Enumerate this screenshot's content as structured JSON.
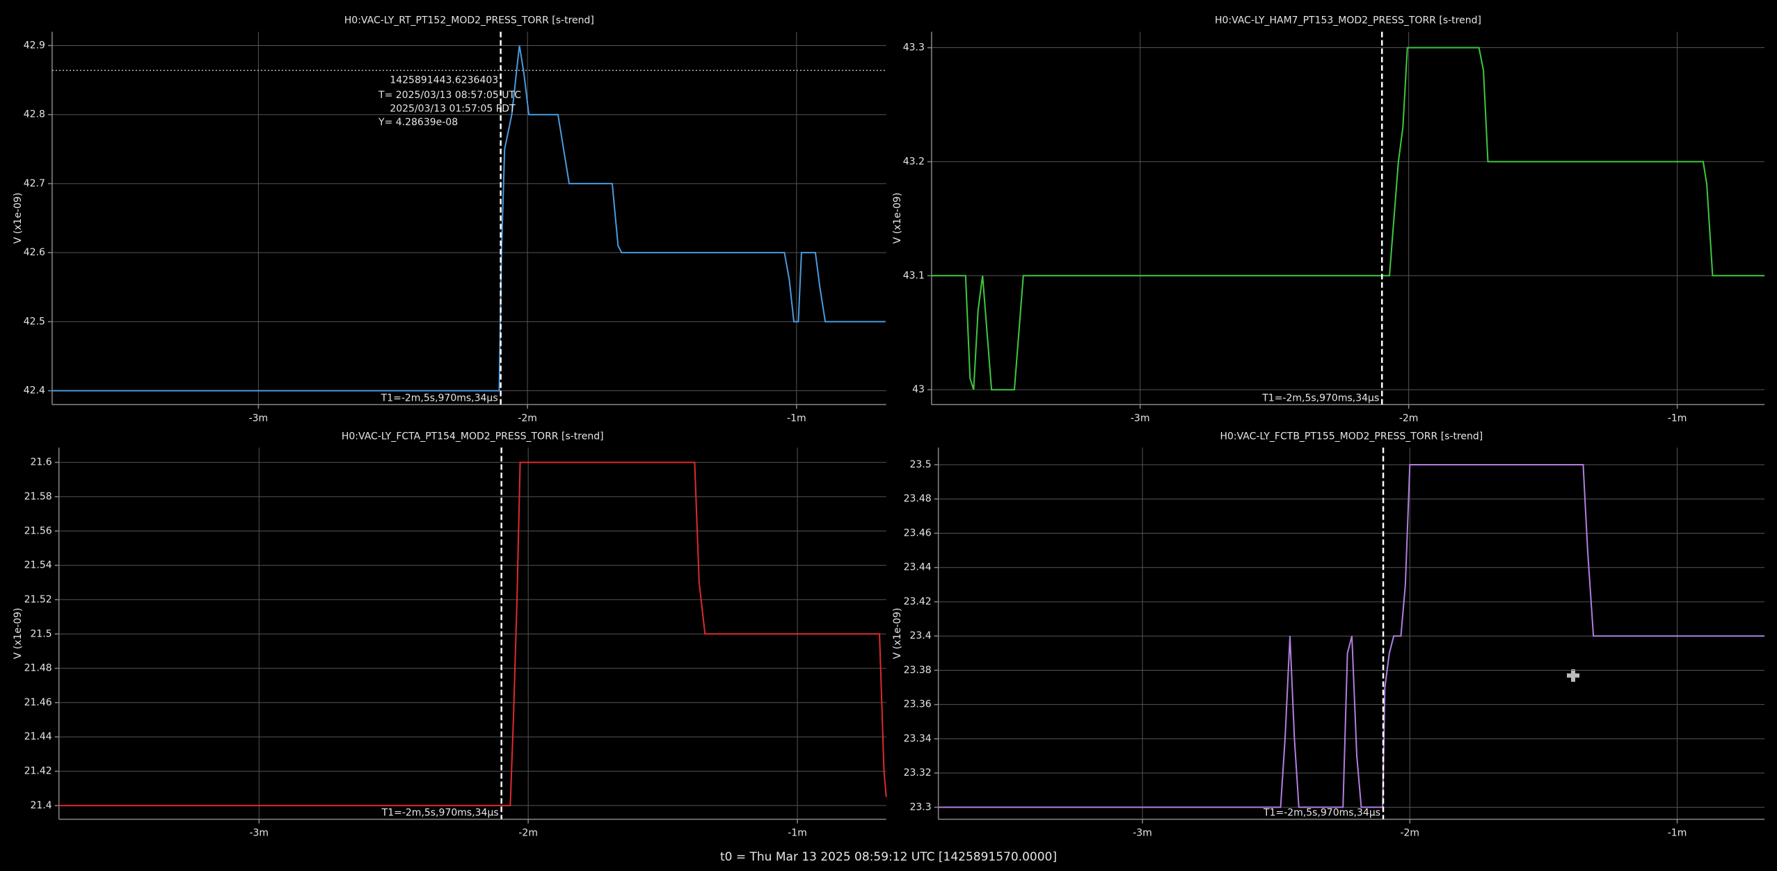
{
  "chart_data": [
    {
      "type": "line",
      "title": "H0:VAC-LY_RT_PT152_MOD2_PRESS_TORR [s-trend]",
      "y_label": "V (x1e-09)",
      "color": "#4a9be0",
      "x": [
        -226,
        -126.3,
        -125.8,
        -125.1,
        -123.5,
        -121.8,
        -120.8,
        -119.7,
        -113.2,
        -112.2,
        -110.7,
        -101.1,
        -99.8,
        -99.0,
        -62.7,
        -61.6,
        -60.6,
        -59.6,
        -58.9,
        -55.8,
        -54.8,
        -53.6,
        -40.2
      ],
      "values": [
        42.4,
        42.4,
        42.6,
        42.75,
        42.8,
        42.9,
        42.86,
        42.8,
        42.8,
        42.76,
        42.7,
        42.7,
        42.61,
        42.6,
        42.6,
        42.56,
        42.5,
        42.5,
        42.6,
        42.6,
        42.55,
        42.5,
        42.5
      ],
      "xlim": [
        -226,
        -40
      ],
      "xticks": [
        {
          "value": -180,
          "label": "-3m"
        },
        {
          "value": -120,
          "label": "-2m"
        },
        {
          "value": -60,
          "label": "-1m"
        }
      ],
      "ylim": [
        42.38,
        42.92
      ],
      "yticks": [
        42.4,
        42.5,
        42.6,
        42.7,
        42.8,
        42.9
      ],
      "grid": true,
      "cursor": {
        "value": -125.97,
        "label": "T1=-2m,5s,970ms,34µs"
      },
      "y_cursor": 42.8639,
      "annotation": [
        "1425891443.6236403",
        "T= 2025/03/13 08:57:05 UTC",
        "2025/03/13 01:57:05 PDT",
        "Y= 4.28639e-08"
      ]
    },
    {
      "type": "line",
      "title": "H0:VAC-LY_HAM7_PT153_MOD2_PRESS_TORR [s-trend]",
      "y_label": "V (x1e-09)",
      "color": "#3ec93e",
      "x": [
        -226.6,
        -219.0,
        -218.0,
        -217.2,
        -216.2,
        -215.2,
        -214.2,
        -213.2,
        -208.1,
        -207.1,
        -206.1,
        -124.3,
        -123.3,
        -122.3,
        -121.3,
        -120.3,
        -104.3,
        -103.3,
        -102.3,
        -54.2,
        -53.4,
        -52.1,
        -40.5
      ],
      "values": [
        43.1,
        43.1,
        43.01,
        43.0,
        43.07,
        43.1,
        43.05,
        43.0,
        43.0,
        43.05,
        43.1,
        43.1,
        43.15,
        43.2,
        43.23,
        43.3,
        43.3,
        43.28,
        43.2,
        43.2,
        43.18,
        43.1,
        43.1
      ],
      "xlim": [
        -226.6,
        -40.5
      ],
      "xticks": [
        {
          "value": -180,
          "label": "-3m"
        },
        {
          "value": -120,
          "label": "-2m"
        },
        {
          "value": -60,
          "label": "-1m"
        }
      ],
      "ylim": [
        42.987,
        43.314
      ],
      "yticks": [
        43.0,
        43.1,
        43.2,
        43.3
      ],
      "grid": true,
      "cursor": {
        "value": -125.97,
        "label": "T1=-2m,5s,970ms,34µs"
      }
    },
    {
      "type": "line",
      "title": "H0:VAC-LY_FCTA_PT154_MOD2_PRESS_TORR [s-trend]",
      "y_label": "V (x1e-09)",
      "color": "#e02a2a",
      "x": [
        -224.6,
        -124.0,
        -123.3,
        -122.5,
        -121.8,
        -82.9,
        -81.9,
        -80.6,
        -41.7,
        -41.2,
        -40.7,
        -40.2
      ],
      "values": [
        21.4,
        21.4,
        21.45,
        21.52,
        21.6,
        21.6,
        21.53,
        21.5,
        21.5,
        21.46,
        21.42,
        21.405
      ],
      "xlim": [
        -224.6,
        -40.2
      ],
      "xticks": [
        {
          "value": -180,
          "label": "-3m"
        },
        {
          "value": -120,
          "label": "-2m"
        },
        {
          "value": -60,
          "label": "-1m"
        }
      ],
      "ylim": [
        21.392,
        21.6086
      ],
      "yticks": [
        21.4,
        21.42,
        21.44,
        21.46,
        21.48,
        21.5,
        21.52,
        21.54,
        21.56,
        21.58,
        21.6
      ],
      "grid": true,
      "cursor": {
        "value": -125.97,
        "label": "T1=-2m,5s,970ms,34µs"
      }
    },
    {
      "type": "line",
      "title": "H0:VAC-LY_FCTB_PT155_MOD2_PRESS_TORR [s-trend]",
      "y_label": "V (x1e-09)",
      "color": "#b07fe0",
      "x": [
        -225.8,
        -149.0,
        -148.0,
        -146.9,
        -145.9,
        -144.9,
        -135.0,
        -134.0,
        -133.0,
        -131.9,
        -130.9,
        -126.1,
        -125.6,
        -124.6,
        -123.6,
        -122.0,
        -121.0,
        -120.0,
        -81.1,
        -80.1,
        -78.8,
        -40.4
      ],
      "values": [
        23.3,
        23.3,
        23.34,
        23.4,
        23.34,
        23.3,
        23.3,
        23.39,
        23.4,
        23.33,
        23.3,
        23.3,
        23.37,
        23.39,
        23.4,
        23.4,
        23.43,
        23.5,
        23.5,
        23.45,
        23.4,
        23.4
      ],
      "xlim": [
        -225.8,
        -40.4
      ],
      "xticks": [
        {
          "value": -180,
          "label": "-3m"
        },
        {
          "value": -120,
          "label": "-2m"
        },
        {
          "value": -60,
          "label": "-1m"
        }
      ],
      "ylim": [
        23.293,
        23.51
      ],
      "yticks": [
        23.3,
        23.32,
        23.34,
        23.36,
        23.38,
        23.4,
        23.42,
        23.44,
        23.46,
        23.48,
        23.5
      ],
      "grid": true,
      "cursor": {
        "value": -125.97,
        "label": "T1=-2m,5s,970ms,34µs"
      }
    }
  ],
  "footer": "t0 = Thu Mar 13 2025 08:59:12 UTC [1425891570.0000]"
}
